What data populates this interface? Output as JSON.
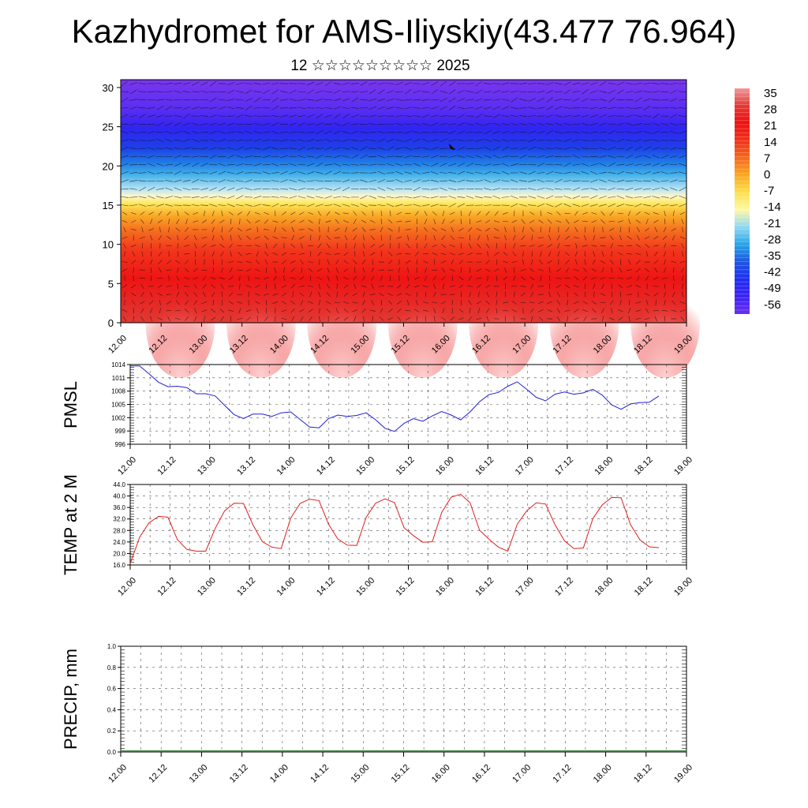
{
  "header": {
    "title": "Kazhydromet for AMS-Iliyskiy(43.477 76.964)",
    "subtitle": "12 ☆☆☆☆☆☆☆☆☆ 2025"
  },
  "chart_data": [
    {
      "type": "heatmap",
      "name": "vertical-cross-section",
      "x_ticks": [
        "12.00",
        "12.12",
        "13.00",
        "13.12",
        "14.00",
        "14.12",
        "15.00",
        "15.12",
        "16.00",
        "16.12",
        "17.00",
        "17.12",
        "18.00",
        "18.12",
        "19.00"
      ],
      "y_ticks": [
        "0",
        "5",
        "10",
        "15",
        "20",
        "25",
        "30"
      ],
      "ylim": [
        0,
        31
      ],
      "colorbar": {
        "labels": [
          "35",
          "28",
          "21",
          "14",
          "7",
          "0",
          "-7",
          "-14",
          "-21",
          "-28",
          "-35",
          "-42",
          "-49",
          "-56"
        ],
        "stops": [
          "#ef9a9a",
          "#e53935",
          "#ee1111",
          "#f0331a",
          "#f56a1d",
          "#f9a825",
          "#fde050",
          "#fff8a8",
          "#8ed8f2",
          "#29a3e6",
          "#1e56e0",
          "#1f2ff0",
          "#3d24f5",
          "#6a2ef0"
        ]
      },
      "vectors_overlay": true,
      "grid": false
    },
    {
      "type": "line",
      "name": "pmsl",
      "ylabel": "PMSL",
      "y_ticks": [
        "1014",
        "1011",
        "1008",
        "1005",
        "1002",
        "999",
        "996"
      ],
      "ylim": [
        996,
        1014
      ],
      "x_ticks": [
        "12.00",
        "12.12",
        "13.00",
        "13.12",
        "14.00",
        "14.12",
        "15.00",
        "15.12",
        "16.00",
        "16.12",
        "17.00",
        "17.12",
        "18.00",
        "18.12",
        "19.00"
      ],
      "series": [
        {
          "color": "#1f1fd6",
          "values": [
            1013.7,
            1013.7,
            1011.9,
            1010,
            1009,
            1009.1,
            1008.8,
            1007.4,
            1007.4,
            1006.9,
            1004.8,
            1002.7,
            1001.8,
            1002.8,
            1002.8,
            1002.3,
            1003.1,
            1003.3,
            1001.6,
            999.9,
            999.7,
            1001.8,
            1002.6,
            1002.3,
            1002.5,
            1003.1,
            1001.5,
            999.6,
            998.9,
            1000.7,
            1001.8,
            1001.2,
            1002.4,
            1003.4,
            1002.6,
            1001.5,
            1003.3,
            1005.6,
            1007.2,
            1007.7,
            1009.1,
            1010.1,
            1008.4,
            1006.6,
            1005.8,
            1007.3,
            1007.8,
            1007.3,
            1007.6,
            1008.4,
            1007.1,
            1004.9,
            1003.9,
            1005.1,
            1005.4,
            1005.5,
            1006.9
          ]
        }
      ],
      "grid": true
    },
    {
      "type": "line",
      "name": "temp-2m",
      "ylabel": "TEMP at 2 M",
      "y_ticks": [
        "44.0",
        "40.0",
        "36.0",
        "32.0",
        "28.0",
        "24.0",
        "20.0",
        "16.0"
      ],
      "ylim": [
        16,
        44
      ],
      "x_ticks": [
        "12.00",
        "12.12",
        "13.00",
        "13.12",
        "14.00",
        "14.12",
        "15.00",
        "15.12",
        "16.00",
        "16.12",
        "17.00",
        "17.12",
        "18.00",
        "18.12",
        "19.00"
      ],
      "series": [
        {
          "color": "#e0201e",
          "values": [
            16.5,
            25.7,
            30.7,
            32.9,
            32.6,
            24.8,
            21.4,
            20.8,
            20.8,
            28.7,
            34.8,
            37.5,
            37.4,
            30,
            24.1,
            22.2,
            21.7,
            32.3,
            37.4,
            38.9,
            38.4,
            30.2,
            25,
            22.9,
            22.8,
            32.6,
            37.5,
            39,
            37.7,
            29,
            26.2,
            23.9,
            24.1,
            34.3,
            39.6,
            40.6,
            37.7,
            28.1,
            25,
            22.2,
            20.8,
            30.2,
            34.8,
            37.6,
            37.2,
            30,
            24.4,
            21.7,
            21.9,
            32.1,
            36.9,
            39.5,
            39.4,
            30,
            24.7,
            22.3,
            22
          ]
        }
      ],
      "grid": true
    },
    {
      "type": "bar",
      "name": "precip",
      "ylabel": "PRECIP, mm",
      "y_ticks": [
        "1.0",
        "0.8",
        "0.6",
        "0.4",
        "0.2",
        "0.0"
      ],
      "ylim": [
        0,
        1
      ],
      "x_ticks": [
        "12.00",
        "12.12",
        "13.00",
        "13.12",
        "14.00",
        "14.12",
        "15.00",
        "15.12",
        "16.00",
        "16.12",
        "17.00",
        "17.12",
        "18.00",
        "18.12",
        "19.00"
      ],
      "series": [
        {
          "color": "#2e7d32",
          "values": []
        }
      ],
      "grid": true
    }
  ]
}
